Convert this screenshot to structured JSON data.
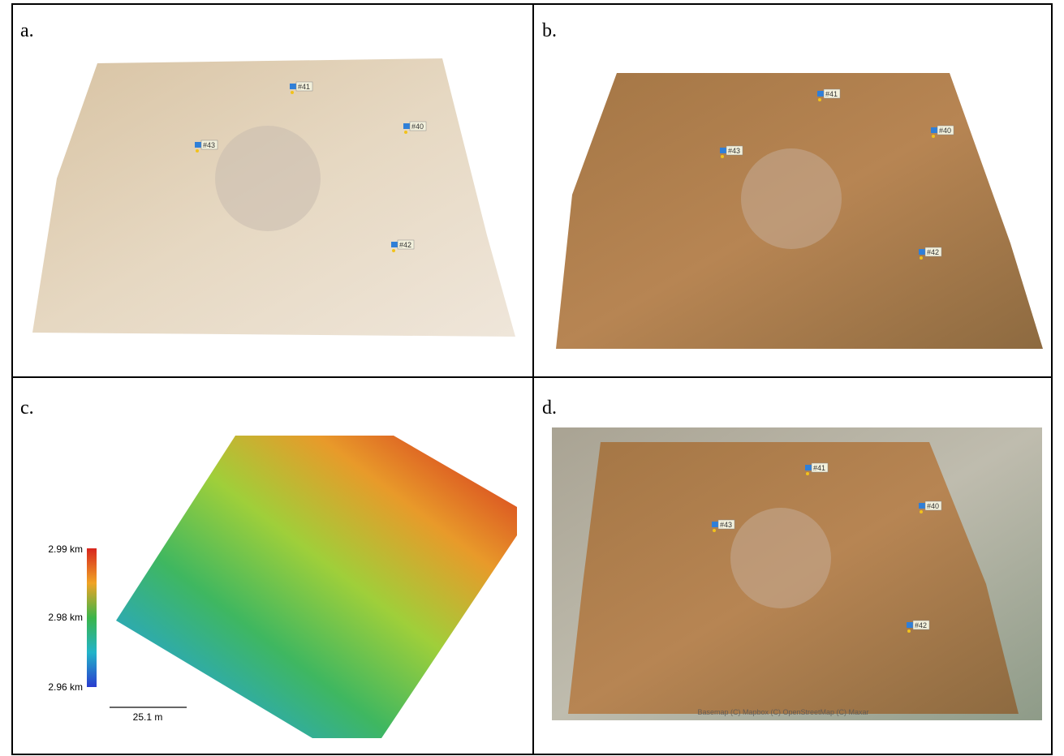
{
  "panels": [
    {
      "label": "a.",
      "markers": [
        "#41",
        "#40",
        "#43",
        "#42"
      ]
    },
    {
      "label": "b.",
      "markers": [
        "#41",
        "#40",
        "#43",
        "#42"
      ]
    },
    {
      "label": "c.",
      "colorbar": [
        "2.99 km",
        "2.98 km",
        "2.96 km"
      ],
      "scale": "25.1 m"
    },
    {
      "label": "d.",
      "markers": [
        "#41",
        "#40",
        "#43",
        "#42"
      ],
      "attribution": "Basemap (C) Mapbox (C) OpenStreetMap (C) Maxar"
    }
  ]
}
